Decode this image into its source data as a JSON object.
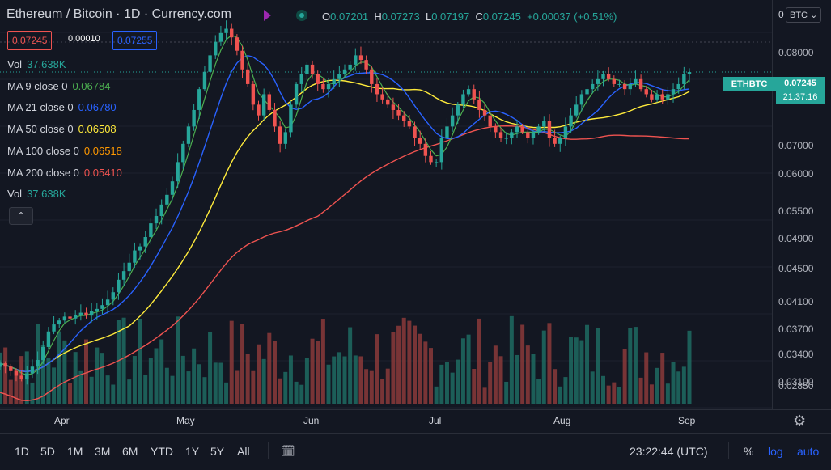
{
  "header": {
    "symbol_title": "Ethereum / Bitcoin · 1D · Currency.com",
    "ohlc": [
      {
        "k": "O",
        "v": "0.07201"
      },
      {
        "k": "H",
        "v": "0.07273"
      },
      {
        "k": "L",
        "v": "0.07197"
      },
      {
        "k": "C",
        "v": "0.07245"
      },
      {
        "k": "",
        "v": "+0.00037 (+0.51%)"
      }
    ],
    "sell_price": "0.07245",
    "spread": "0.00010",
    "buy_price": "0.07255"
  },
  "indicators": [
    {
      "label": "Vol",
      "value": "37.638K",
      "color": "#26a69a"
    },
    {
      "label": "MA 9 close 0",
      "value": "0.06784",
      "color": "#4caf50"
    },
    {
      "label": "MA 21 close 0",
      "value": "0.06780",
      "color": "#2962ff"
    },
    {
      "label": "MA 50 close 0",
      "value": "0.06508",
      "color": "#ffeb3b"
    },
    {
      "label": "MA 100 close 0",
      "value": "0.06518",
      "color": "#ff9800"
    },
    {
      "label": "MA 200 close 0",
      "value": "0.05410",
      "color": "#ef5350"
    },
    {
      "label": "Vol",
      "value": "37.638K",
      "color": "#26a69a"
    }
  ],
  "collapse_glyph": "⌃",
  "currency_select": "BTC",
  "price_label": {
    "symbol": "ETHBTC",
    "price": "0.07245",
    "countdown": "21:37:16"
  },
  "y_ticks": [
    "0.08000",
    "0.07000",
    "0.06000",
    "0.05500",
    "0.04900",
    "0.04500",
    "0.04100",
    "0.03700",
    "0.03400",
    "0.03100",
    "0.02850"
  ],
  "x_ticks": [
    "Apr",
    "May",
    "Jun",
    "Jul",
    "Aug",
    "Sep"
  ],
  "timeframes": [
    "1D",
    "5D",
    "1M",
    "3M",
    "6M",
    "YTD",
    "1Y",
    "5Y",
    "All"
  ],
  "footer": {
    "clock": "23:22:44 (UTC)",
    "percent": "%",
    "log": "log",
    "auto": "auto"
  },
  "colors": {
    "up": "#26a69a",
    "down": "#ef5350",
    "bg": "#131722"
  },
  "chart_data": {
    "type": "candlestick",
    "scale": "log",
    "ylim": [
      0.028,
      0.085
    ],
    "last_close": 0.07245,
    "months": [
      "Apr",
      "May",
      "Jun",
      "Jul",
      "Aug",
      "Sep"
    ],
    "close_series": [
      0.0315,
      0.0312,
      0.0308,
      0.0304,
      0.0301,
      0.0306,
      0.0312,
      0.0318,
      0.033,
      0.0345,
      0.0352,
      0.0356,
      0.036,
      0.0358,
      0.0362,
      0.0364,
      0.0361,
      0.0366,
      0.0368,
      0.0372,
      0.0378,
      0.0386,
      0.04,
      0.041,
      0.042,
      0.0435,
      0.044,
      0.0452,
      0.047,
      0.048,
      0.0496,
      0.051,
      0.053,
      0.056,
      0.059,
      0.062,
      0.065,
      0.069,
      0.0725,
      0.076,
      0.079,
      0.081,
      0.082,
      0.08,
      0.077,
      0.073,
      0.07,
      0.066,
      0.064,
      0.068,
      0.065,
      0.062,
      0.059,
      0.061,
      0.066,
      0.07,
      0.072,
      0.074,
      0.072,
      0.07,
      0.069,
      0.07,
      0.071,
      0.072,
      0.073,
      0.074,
      0.076,
      0.075,
      0.073,
      0.07,
      0.068,
      0.067,
      0.066,
      0.065,
      0.064,
      0.063,
      0.062,
      0.06,
      0.059,
      0.057,
      0.056,
      0.056,
      0.06,
      0.062,
      0.064,
      0.066,
      0.068,
      0.069,
      0.067,
      0.065,
      0.064,
      0.062,
      0.061,
      0.06,
      0.06,
      0.061,
      0.062,
      0.061,
      0.06,
      0.061,
      0.062,
      0.063,
      0.06,
      0.059,
      0.06,
      0.062,
      0.064,
      0.066,
      0.068,
      0.069,
      0.07,
      0.071,
      0.072,
      0.071,
      0.07,
      0.07,
      0.069,
      0.07,
      0.071,
      0.069,
      0.068,
      0.067,
      0.068,
      0.067,
      0.068,
      0.069,
      0.07,
      0.072,
      0.07245
    ],
    "ma_lines": [
      {
        "name": "MA 9",
        "color": "#4caf50",
        "last": 0.06784
      },
      {
        "name": "MA 21",
        "color": "#2962ff",
        "last": 0.0678
      },
      {
        "name": "MA 50",
        "color": "#ffeb3b",
        "last": 0.06508
      },
      {
        "name": "MA 200",
        "color": "#ef5350",
        "last": 0.0541
      }
    ]
  }
}
